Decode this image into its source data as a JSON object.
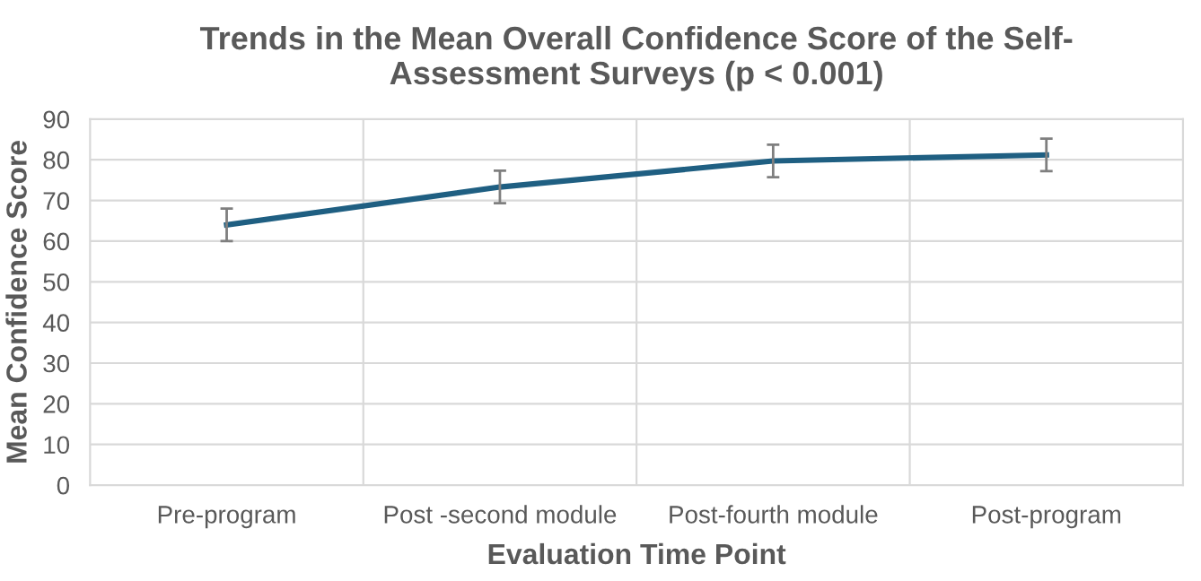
{
  "chart_data": {
    "type": "line",
    "title": "Trends in the Mean Overall Confidence Score of the Self-\nAssessment Surveys (p < 0.001)",
    "xlabel": "Evaluation Time Point",
    "ylabel": "Mean Confidence Score",
    "categories": [
      "Pre-program",
      "Post -second module",
      "Post-fourth module",
      "Post-program"
    ],
    "series": [
      {
        "color": "#1f5f82",
        "values": [
          64,
          73.3,
          79.7,
          81.2
        ],
        "errors": [
          4,
          4,
          4,
          4
        ]
      }
    ],
    "ylim": [
      0,
      90
    ],
    "yticks": [
      0,
      10,
      20,
      30,
      40,
      50,
      60,
      70,
      80,
      90
    ],
    "grid": true,
    "legend": false,
    "marker": "none",
    "line_style": "solid"
  }
}
